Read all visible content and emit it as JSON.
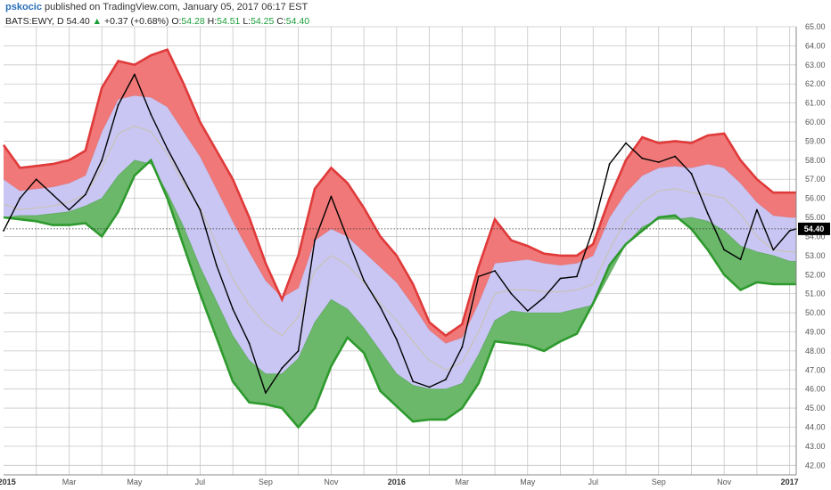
{
  "header": {
    "username": "pskocic",
    "published_text": "published on TradingView.com, January 05, 2017 06:17 EST",
    "symbol": "BATS:EWY, D",
    "last": "54.40",
    "change": "+0.37 (+0.68%)",
    "o_label": "O:",
    "o_value": "54.28",
    "h_label": "H:",
    "h_value": "54.51",
    "l_label": "L:",
    "l_value": "54.25",
    "c_label": "C:",
    "c_value": "54.40"
  },
  "icons": {
    "change_direction": "up-triangle-icon"
  },
  "chart_data": {
    "type": "line",
    "title": "",
    "xlabel": "",
    "ylabel": "",
    "ylim": [
      41.5,
      65.0
    ],
    "y_ticks": [
      42,
      43,
      44,
      45,
      46,
      47,
      48,
      49,
      50,
      51,
      52,
      53,
      54,
      55,
      56,
      57,
      58,
      59,
      60,
      61,
      62,
      63,
      64,
      65
    ],
    "x_tick_labels": [
      {
        "label": "2015",
        "month": 0.1,
        "bold": true
      },
      {
        "label": "Mar",
        "month": 2,
        "bold": false
      },
      {
        "label": "May",
        "month": 4,
        "bold": false
      },
      {
        "label": "Jul",
        "month": 6,
        "bold": false
      },
      {
        "label": "Sep",
        "month": 8,
        "bold": false
      },
      {
        "label": "Nov",
        "month": 10,
        "bold": false
      },
      {
        "label": "2016",
        "month": 12,
        "bold": true
      },
      {
        "label": "Mar",
        "month": 14,
        "bold": false
      },
      {
        "label": "May",
        "month": 16,
        "bold": false
      },
      {
        "label": "Jul",
        "month": 18,
        "bold": false
      },
      {
        "label": "Sep",
        "month": 20,
        "bold": false
      },
      {
        "label": "Nov",
        "month": 22,
        "bold": false
      },
      {
        "label": "2017",
        "month": 24,
        "bold": true
      }
    ],
    "x_unit": "months since Jan 2015",
    "last_price": {
      "value": 54.4,
      "label": "54.40"
    },
    "grid": true,
    "colors": {
      "upper_band": "#e03a3a",
      "upper_fill": "#f07878",
      "middle_fill": "#c9c6f4",
      "middle_line": "#c8c3b6",
      "lower_band": "#2e9a2e",
      "lower_fill": "#6bb86b",
      "price": "#000000",
      "grid": "#c6c6c6",
      "background": "#ffffff"
    },
    "x": [
      0,
      0.5,
      1,
      1.5,
      2,
      2.5,
      3,
      3.5,
      4,
      4.5,
      5,
      5.5,
      6,
      6.5,
      7,
      7.5,
      8,
      8.5,
      9,
      9.5,
      10,
      10.5,
      11,
      11.5,
      12,
      12.5,
      13,
      13.5,
      14,
      14.5,
      15,
      15.5,
      16,
      16.5,
      17,
      17.5,
      18,
      18.5,
      19,
      19.5,
      20,
      20.5,
      21,
      21.5,
      22,
      22.5,
      23,
      23.5,
      24,
      24.2
    ],
    "series": [
      {
        "role": "upper_band",
        "values": [
          58.8,
          57.6,
          57.7,
          57.8,
          58.0,
          58.5,
          61.8,
          63.2,
          63.0,
          63.5,
          63.8,
          62.0,
          60.0,
          58.5,
          57.0,
          55.0,
          52.6,
          50.7,
          53.0,
          56.5,
          57.6,
          56.8,
          55.5,
          54.0,
          53.0,
          51.5,
          49.5,
          48.8,
          49.4,
          52.4,
          54.9,
          53.8,
          53.5,
          53.1,
          53.0,
          53.0,
          53.6,
          56.0,
          58.0,
          59.2,
          58.9,
          59.0,
          58.9,
          59.3,
          59.4,
          58.0,
          57.0,
          56.3,
          56.3,
          56.3
        ]
      },
      {
        "role": "upper_inner",
        "values": [
          57.0,
          56.4,
          56.5,
          56.6,
          56.8,
          57.2,
          59.5,
          61.2,
          61.4,
          61.3,
          60.8,
          59.5,
          58.2,
          56.5,
          54.8,
          53.2,
          51.7,
          50.8,
          51.3,
          53.8,
          54.4,
          54.0,
          53.2,
          52.4,
          51.6,
          50.4,
          49.1,
          48.4,
          48.7,
          50.5,
          52.6,
          52.7,
          52.8,
          52.6,
          52.5,
          52.6,
          53.0,
          55.0,
          56.3,
          57.2,
          57.6,
          57.7,
          57.6,
          57.8,
          57.6,
          56.8,
          55.8,
          55.1,
          55.0,
          55.0
        ]
      },
      {
        "role": "middle",
        "values": [
          55.7,
          55.4,
          55.5,
          55.6,
          55.8,
          56.2,
          57.6,
          59.4,
          59.8,
          59.5,
          58.3,
          56.8,
          55.5,
          53.6,
          51.8,
          50.4,
          49.4,
          48.8,
          49.8,
          52.2,
          53.0,
          52.5,
          51.6,
          50.5,
          49.6,
          48.5,
          47.5,
          47.0,
          47.4,
          49.0,
          51.0,
          51.2,
          51.2,
          51.1,
          51.1,
          51.2,
          51.5,
          53.3,
          54.9,
          55.8,
          56.4,
          56.5,
          56.3,
          56.2,
          56.0,
          55.2,
          54.0,
          53.3,
          53.2,
          53.2
        ]
      },
      {
        "role": "lower_inner",
        "values": [
          55.0,
          55.1,
          55.1,
          55.2,
          55.3,
          55.6,
          56.0,
          57.2,
          58.0,
          57.8,
          56.3,
          54.5,
          52.4,
          50.6,
          48.8,
          47.5,
          46.8,
          46.8,
          47.6,
          49.5,
          50.7,
          50.2,
          49.2,
          48.0,
          46.8,
          46.2,
          46.0,
          46.0,
          46.3,
          47.8,
          49.6,
          50.1,
          50.0,
          50.0,
          50.0,
          50.2,
          50.4,
          52.0,
          53.6,
          54.5,
          54.9,
          54.9,
          55.0,
          54.8,
          54.3,
          53.5,
          53.2,
          53.0,
          52.7,
          52.7
        ]
      },
      {
        "role": "lower_band",
        "values": [
          55.0,
          54.9,
          54.8,
          54.6,
          54.6,
          54.7,
          54.0,
          55.3,
          57.2,
          58.0,
          56.0,
          53.5,
          51.0,
          48.7,
          46.4,
          45.3,
          45.2,
          45.0,
          44.0,
          45.0,
          47.2,
          48.7,
          47.9,
          45.9,
          45.1,
          44.3,
          44.4,
          44.4,
          45.0,
          46.3,
          48.5,
          48.4,
          48.3,
          48.0,
          48.5,
          48.9,
          50.5,
          52.5,
          53.6,
          54.3,
          55.0,
          55.1,
          54.4,
          53.3,
          52.0,
          51.2,
          51.6,
          51.5,
          51.5,
          51.5
        ]
      },
      {
        "role": "price",
        "values": [
          54.3,
          56.0,
          57.0,
          56.2,
          55.4,
          56.2,
          58.0,
          60.9,
          62.5,
          60.4,
          58.6,
          57.0,
          55.4,
          52.5,
          50.2,
          48.4,
          45.8,
          47.1,
          48.0,
          53.8,
          56.1,
          53.9,
          51.7,
          50.3,
          48.6,
          46.4,
          46.1,
          46.5,
          48.2,
          51.9,
          52.2,
          51.0,
          50.1,
          50.8,
          51.8,
          51.9,
          54.4,
          57.8,
          58.9,
          58.1,
          57.9,
          58.2,
          57.3,
          55.2,
          53.3,
          52.8,
          55.4,
          53.3,
          54.3,
          54.4
        ]
      }
    ]
  }
}
